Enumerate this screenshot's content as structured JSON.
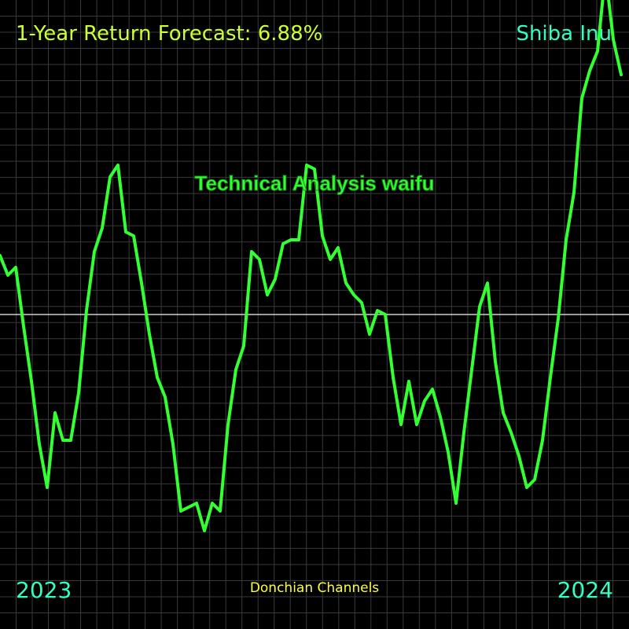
{
  "colors": {
    "background": "#000000",
    "grid": "#3a3a3a",
    "baseline": "#cfcfcf",
    "line": "#33ff33",
    "headline": "#ccff33",
    "asset": "#33ffc4",
    "indicator": "#ffff33"
  },
  "headline": "1-Year Return Forecast: 6.88%",
  "asset_name": "Shiba Inu",
  "watermark": "Technical Analysis waifu",
  "indicator": "Donchian Channels",
  "chart_data": {
    "type": "line",
    "x_start_label": "2023",
    "x_end_label": "2024",
    "grid": true,
    "baseline": 0,
    "y_scale": "relative",
    "ylim": [
      -40,
      40
    ],
    "series": [
      {
        "values": [
          7.5,
          5.0,
          6.0,
          -1.5,
          -8.5,
          -16.5,
          -22.0,
          -12.5,
          -16.0,
          -16.0,
          -10.0,
          0.5,
          8.0,
          11.0,
          17.5,
          19.0,
          10.5,
          10.0,
          4.0,
          -2.5,
          -8.0,
          -10.5,
          -16.5,
          -25.0,
          -24.5,
          -24.0,
          -27.5,
          -24.0,
          -25.0,
          -14.0,
          -7.0,
          -4.0,
          8.0,
          7.0,
          2.5,
          4.5,
          9.0,
          9.5,
          9.5,
          19.0,
          18.5,
          10.0,
          7.0,
          8.5,
          4.0,
          2.5,
          1.5,
          -2.5,
          0.5,
          0.0,
          -8.0,
          -14.0,
          -8.5,
          -14.0,
          -11.0,
          -9.5,
          -13.0,
          -17.5,
          -24.0,
          -15.0,
          -7.0,
          1.0,
          4.0,
          -6.0,
          -12.5,
          -15.0,
          -18.0,
          -22.0,
          -21.0,
          -16.0,
          -8.0,
          -0.5,
          9.5,
          15.5,
          27.5,
          31.0,
          33.5,
          43.5,
          35.0,
          30.5
        ]
      }
    ]
  }
}
